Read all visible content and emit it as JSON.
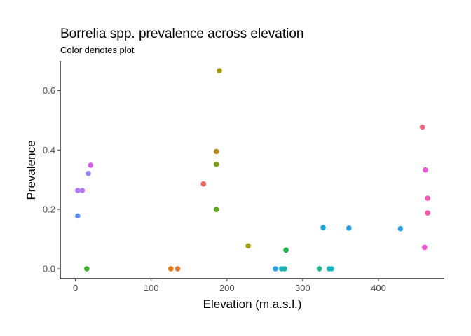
{
  "chart_data": {
    "type": "scatter",
    "title": "Borrelia spp. prevalence across elevation",
    "subtitle": "Color denotes plot",
    "xlabel": "Elevation (m.a.s.l.)",
    "ylabel": "Prevalence",
    "xlim": [
      -20,
      487
    ],
    "ylim": [
      -0.033,
      0.7
    ],
    "xticks": [
      0,
      100,
      200,
      300,
      400
    ],
    "yticks": [
      0.0,
      0.2,
      0.4,
      0.6
    ],
    "xtick_labels": [
      "0",
      "100",
      "200",
      "300",
      "400"
    ],
    "ytick_labels": [
      "0.0",
      "0.2",
      "0.4",
      "0.6"
    ],
    "grid": false,
    "legend": "none",
    "points": [
      {
        "x": 3,
        "y": 0.178,
        "color": "#5b8cf7"
      },
      {
        "x": 3,
        "y": 0.264,
        "color": "#b77cf5"
      },
      {
        "x": 9,
        "y": 0.264,
        "color": "#b77cf5"
      },
      {
        "x": 15,
        "y": 0.0,
        "color": "#3aab27"
      },
      {
        "x": 17,
        "y": 0.321,
        "color": "#9a83f4"
      },
      {
        "x": 20,
        "y": 0.349,
        "color": "#d564ec"
      },
      {
        "x": 126,
        "y": 0.0,
        "color": "#e8750f"
      },
      {
        "x": 135,
        "y": 0.0,
        "color": "#e07a2d"
      },
      {
        "x": 169,
        "y": 0.286,
        "color": "#f0625b"
      },
      {
        "x": 186,
        "y": 0.395,
        "color": "#bb8a1f"
      },
      {
        "x": 186,
        "y": 0.352,
        "color": "#79a313"
      },
      {
        "x": 186,
        "y": 0.2,
        "color": "#5aa61c"
      },
      {
        "x": 190,
        "y": 0.667,
        "color": "#a59a0e"
      },
      {
        "x": 228,
        "y": 0.077,
        "color": "#a9a313"
      },
      {
        "x": 264,
        "y": 0.0,
        "color": "#21a8e6"
      },
      {
        "x": 272,
        "y": 0.0,
        "color": "#1aaed1"
      },
      {
        "x": 276,
        "y": 0.0,
        "color": "#18b39e"
      },
      {
        "x": 278,
        "y": 0.063,
        "color": "#1fb24c"
      },
      {
        "x": 322,
        "y": 0.0,
        "color": "#21b48c"
      },
      {
        "x": 327,
        "y": 0.139,
        "color": "#1ba6d7"
      },
      {
        "x": 335,
        "y": 0.0,
        "color": "#1db7b4"
      },
      {
        "x": 338,
        "y": 0.0,
        "color": "#1bb3bd"
      },
      {
        "x": 361,
        "y": 0.137,
        "color": "#22a0e0"
      },
      {
        "x": 429,
        "y": 0.135,
        "color": "#289fe3"
      },
      {
        "x": 458,
        "y": 0.477,
        "color": "#f3647c"
      },
      {
        "x": 461,
        "y": 0.072,
        "color": "#ec57d1"
      },
      {
        "x": 462,
        "y": 0.333,
        "color": "#ed57d8"
      },
      {
        "x": 465,
        "y": 0.238,
        "color": "#f25fb8"
      },
      {
        "x": 465,
        "y": 0.188,
        "color": "#f55aa8"
      }
    ]
  }
}
